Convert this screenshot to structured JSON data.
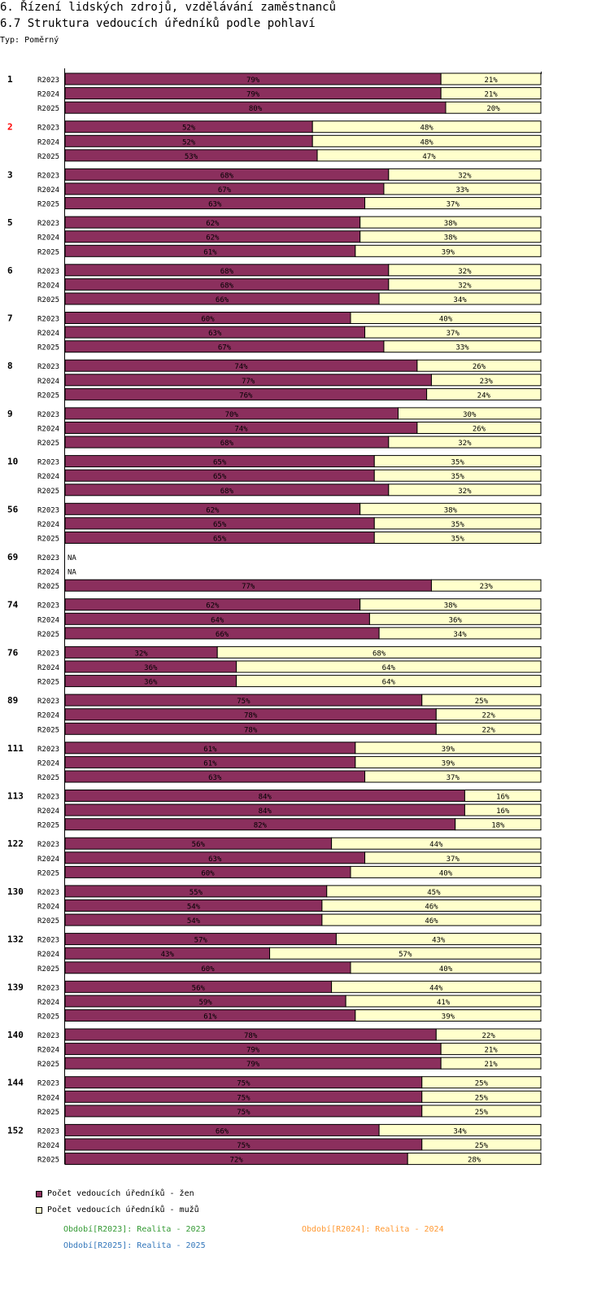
{
  "header": {
    "title_line1": "6. Řízení lidských zdrojů, vzdělávání zaměstnanců",
    "title_line2": "6.7 Struktura vedoucích úředníků podle pohlaví",
    "type_label": "Typ: Poměrný"
  },
  "colors": {
    "women": "#8b2f5d",
    "men": "#ffffcc",
    "highlight_group": "#ff0000",
    "period_2023": "#339933",
    "period_2024": "#ff9933",
    "period_2025": "#3377bb"
  },
  "legend": {
    "women_label": "Počet vedoucích úředníků - žen",
    "men_label": "Počet vedoucích úředníků - mužů",
    "period_2023": "Období[R2023]: Realita - 2023",
    "period_2024": "Období[R2024]: Realita - 2024",
    "period_2025": "Období[R2025]: Realita - 2025"
  },
  "chart_data": {
    "type": "bar",
    "orientation": "horizontal",
    "stacked": true,
    "normalized": true,
    "title": "6.7 Struktura vedoucích úředníků podle pohlaví",
    "series_names": [
      "Počet vedoucích úředníků - žen",
      "Počet vedoucích úředníků - mužů"
    ],
    "periods": [
      "R2023",
      "R2024",
      "R2025"
    ],
    "highlighted_group": "2",
    "missing_label": "NA",
    "value_suffix": "%",
    "groups": [
      {
        "label": "1",
        "rows": [
          {
            "period": "R2023",
            "women": 79,
            "men": 21
          },
          {
            "period": "R2024",
            "women": 79,
            "men": 21
          },
          {
            "period": "R2025",
            "women": 80,
            "men": 20
          }
        ]
      },
      {
        "label": "2",
        "rows": [
          {
            "period": "R2023",
            "women": 52,
            "men": 48
          },
          {
            "period": "R2024",
            "women": 52,
            "men": 48
          },
          {
            "period": "R2025",
            "women": 53,
            "men": 47
          }
        ]
      },
      {
        "label": "3",
        "rows": [
          {
            "period": "R2023",
            "women": 68,
            "men": 32
          },
          {
            "period": "R2024",
            "women": 67,
            "men": 33
          },
          {
            "period": "R2025",
            "women": 63,
            "men": 37
          }
        ]
      },
      {
        "label": "5",
        "rows": [
          {
            "period": "R2023",
            "women": 62,
            "men": 38
          },
          {
            "period": "R2024",
            "women": 62,
            "men": 38
          },
          {
            "period": "R2025",
            "women": 61,
            "men": 39
          }
        ]
      },
      {
        "label": "6",
        "rows": [
          {
            "period": "R2023",
            "women": 68,
            "men": 32
          },
          {
            "period": "R2024",
            "women": 68,
            "men": 32
          },
          {
            "period": "R2025",
            "women": 66,
            "men": 34
          }
        ]
      },
      {
        "label": "7",
        "rows": [
          {
            "period": "R2023",
            "women": 60,
            "men": 40
          },
          {
            "period": "R2024",
            "women": 63,
            "men": 37
          },
          {
            "period": "R2025",
            "women": 67,
            "men": 33
          }
        ]
      },
      {
        "label": "8",
        "rows": [
          {
            "period": "R2023",
            "women": 74,
            "men": 26
          },
          {
            "period": "R2024",
            "women": 77,
            "men": 23
          },
          {
            "period": "R2025",
            "women": 76,
            "men": 24
          }
        ]
      },
      {
        "label": "9",
        "rows": [
          {
            "period": "R2023",
            "women": 70,
            "men": 30
          },
          {
            "period": "R2024",
            "women": 74,
            "men": 26
          },
          {
            "period": "R2025",
            "women": 68,
            "men": 32
          }
        ]
      },
      {
        "label": "10",
        "rows": [
          {
            "period": "R2023",
            "women": 65,
            "men": 35
          },
          {
            "period": "R2024",
            "women": 65,
            "men": 35
          },
          {
            "period": "R2025",
            "women": 68,
            "men": 32
          }
        ]
      },
      {
        "label": "56",
        "rows": [
          {
            "period": "R2023",
            "women": 62,
            "men": 38
          },
          {
            "period": "R2024",
            "women": 65,
            "men": 35
          },
          {
            "period": "R2025",
            "women": 65,
            "men": 35
          }
        ]
      },
      {
        "label": "69",
        "rows": [
          {
            "period": "R2023",
            "women": null,
            "men": null
          },
          {
            "period": "R2024",
            "women": null,
            "men": null
          },
          {
            "period": "R2025",
            "women": 77,
            "men": 23
          }
        ]
      },
      {
        "label": "74",
        "rows": [
          {
            "period": "R2023",
            "women": 62,
            "men": 38
          },
          {
            "period": "R2024",
            "women": 64,
            "men": 36
          },
          {
            "period": "R2025",
            "women": 66,
            "men": 34
          }
        ]
      },
      {
        "label": "76",
        "rows": [
          {
            "period": "R2023",
            "women": 32,
            "men": 68
          },
          {
            "period": "R2024",
            "women": 36,
            "men": 64
          },
          {
            "period": "R2025",
            "women": 36,
            "men": 64
          }
        ]
      },
      {
        "label": "89",
        "rows": [
          {
            "period": "R2023",
            "women": 75,
            "men": 25
          },
          {
            "period": "R2024",
            "women": 78,
            "men": 22
          },
          {
            "period": "R2025",
            "women": 78,
            "men": 22
          }
        ]
      },
      {
        "label": "111",
        "rows": [
          {
            "period": "R2023",
            "women": 61,
            "men": 39
          },
          {
            "period": "R2024",
            "women": 61,
            "men": 39
          },
          {
            "period": "R2025",
            "women": 63,
            "men": 37
          }
        ]
      },
      {
        "label": "113",
        "rows": [
          {
            "period": "R2023",
            "women": 84,
            "men": 16
          },
          {
            "period": "R2024",
            "women": 84,
            "men": 16
          },
          {
            "period": "R2025",
            "women": 82,
            "men": 18
          }
        ]
      },
      {
        "label": "122",
        "rows": [
          {
            "period": "R2023",
            "women": 56,
            "men": 44
          },
          {
            "period": "R2024",
            "women": 63,
            "men": 37
          },
          {
            "period": "R2025",
            "women": 60,
            "men": 40
          }
        ]
      },
      {
        "label": "130",
        "rows": [
          {
            "period": "R2023",
            "women": 55,
            "men": 45
          },
          {
            "period": "R2024",
            "women": 54,
            "men": 46
          },
          {
            "period": "R2025",
            "women": 54,
            "men": 46
          }
        ]
      },
      {
        "label": "132",
        "rows": [
          {
            "period": "R2023",
            "women": 57,
            "men": 43
          },
          {
            "period": "R2024",
            "women": 43,
            "men": 57
          },
          {
            "period": "R2025",
            "women": 60,
            "men": 40
          }
        ]
      },
      {
        "label": "139",
        "rows": [
          {
            "period": "R2023",
            "women": 56,
            "men": 44
          },
          {
            "period": "R2024",
            "women": 59,
            "men": 41
          },
          {
            "period": "R2025",
            "women": 61,
            "men": 39
          }
        ]
      },
      {
        "label": "140",
        "rows": [
          {
            "period": "R2023",
            "women": 78,
            "men": 22
          },
          {
            "period": "R2024",
            "women": 79,
            "men": 21
          },
          {
            "period": "R2025",
            "women": 79,
            "men": 21
          }
        ]
      },
      {
        "label": "144",
        "rows": [
          {
            "period": "R2023",
            "women": 75,
            "men": 25
          },
          {
            "period": "R2024",
            "women": 75,
            "men": 25
          },
          {
            "period": "R2025",
            "women": 75,
            "men": 25
          }
        ]
      },
      {
        "label": "152",
        "rows": [
          {
            "period": "R2023",
            "women": 66,
            "men": 34
          },
          {
            "period": "R2024",
            "women": 75,
            "men": 25
          },
          {
            "period": "R2025",
            "women": 72,
            "men": 28
          }
        ]
      }
    ]
  }
}
